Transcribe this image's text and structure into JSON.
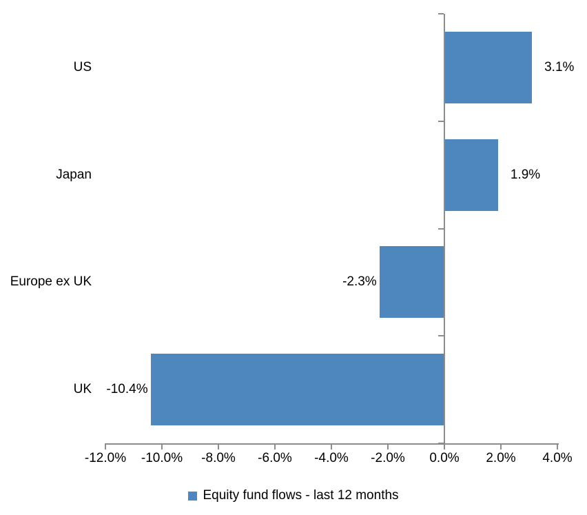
{
  "chart_data": {
    "type": "bar",
    "orientation": "horizontal",
    "title": "",
    "xlabel": "",
    "ylabel": "",
    "categories": [
      "US",
      "Japan",
      "Europe ex UK",
      "UK"
    ],
    "series": [
      {
        "name": "Equity fund flows - last 12 months",
        "values": [
          3.1,
          1.9,
          -2.3,
          -10.4
        ],
        "value_labels": [
          "3.1%",
          "1.9%",
          "-2.3%",
          "-10.4%"
        ]
      }
    ],
    "xlim": [
      -12,
      4
    ],
    "x_ticks": [
      -12,
      -10,
      -8,
      -6,
      -4,
      -2,
      0,
      2,
      4
    ],
    "x_tick_labels": [
      "-12.0%",
      "-10.0%",
      "-8.0%",
      "-6.0%",
      "-4.0%",
      "-2.0%",
      "0.0%",
      "2.0%",
      "4.0%"
    ],
    "grid": false,
    "legend_position": "bottom",
    "colors": {
      "bar": "#4E87BD",
      "axis": "#8C8C8C",
      "text": "#000000",
      "background": "#ffffff"
    }
  },
  "legend": {
    "label": "Equity fund flows - last 12 months"
  }
}
